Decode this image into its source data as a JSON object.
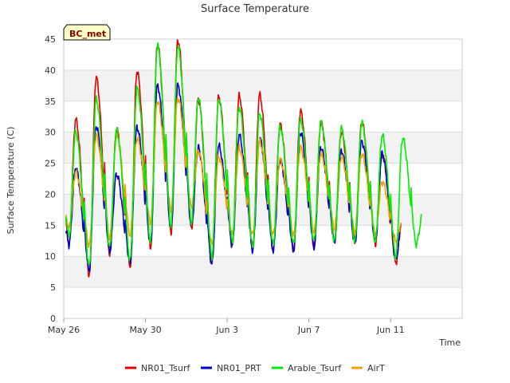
{
  "chart_data": {
    "type": "line",
    "title": "Surface Temperature",
    "xlabel": "Time",
    "ylabel": "Surface Temperature (C)",
    "badge": "BC_met",
    "ylim": [
      0,
      45
    ],
    "yticks": [
      0,
      5,
      10,
      15,
      20,
      25,
      30,
      35,
      40,
      45
    ],
    "xlim": [
      0,
      19.5
    ],
    "xticks": [
      {
        "x": 0,
        "label": "May 26"
      },
      {
        "x": 4,
        "label": "May 30"
      },
      {
        "x": 8,
        "label": "Jun 3"
      },
      {
        "x": 12,
        "label": "Jun 7"
      },
      {
        "x": 16,
        "label": "Jun 11"
      }
    ],
    "grid": "horizontal alternating bands",
    "legend_position": "bottom",
    "series": [
      {
        "name": "NR01_Tsurf",
        "color": "#e00000",
        "days": [
          {
            "min": 11.5,
            "max": 32.0
          },
          {
            "min": 7.0,
            "max": 38.8
          },
          {
            "min": 10.5,
            "max": 30.5
          },
          {
            "min": 8.5,
            "max": 39.8
          },
          {
            "min": 11.5,
            "max": 44.2
          },
          {
            "min": 13.8,
            "max": 44.8
          },
          {
            "min": 14.5,
            "max": 35.3
          },
          {
            "min": 9.0,
            "max": 35.7
          },
          {
            "min": 11.8,
            "max": 35.8
          },
          {
            "min": 11.5,
            "max": 36.0
          },
          {
            "min": 11.0,
            "max": 31.2
          },
          {
            "min": 11.0,
            "max": 33.4
          },
          {
            "min": 11.5,
            "max": 31.5
          },
          {
            "min": 12.5,
            "max": 30.0
          },
          {
            "min": 12.5,
            "max": 31.6
          },
          {
            "min": 12.0,
            "max": 26.5
          },
          {
            "min": 9.0,
            "max": 16.5
          }
        ]
      },
      {
        "name": "NR01_PRT",
        "color": "#0000cc",
        "days": [
          {
            "min": 11.8,
            "max": 24.2
          },
          {
            "min": 7.8,
            "max": 31.0
          },
          {
            "min": 10.8,
            "max": 23.2
          },
          {
            "min": 9.0,
            "max": 30.8
          },
          {
            "min": 12.0,
            "max": 37.5
          },
          {
            "min": 14.5,
            "max": 37.5
          },
          {
            "min": 15.0,
            "max": 27.5
          },
          {
            "min": 8.8,
            "max": 27.8
          },
          {
            "min": 11.8,
            "max": 29.5
          },
          {
            "min": 11.0,
            "max": 29.0
          },
          {
            "min": 11.0,
            "max": 25.5
          },
          {
            "min": 11.0,
            "max": 30.0
          },
          {
            "min": 11.5,
            "max": 27.5
          },
          {
            "min": 12.5,
            "max": 27.0
          },
          {
            "min": 12.2,
            "max": 28.5
          },
          {
            "min": 12.5,
            "max": 26.5
          },
          {
            "min": 9.5,
            "max": 16.5
          }
        ]
      },
      {
        "name": "Arable_Tsurf",
        "color": "#00ee00",
        "days": [
          {
            "min": 13.0,
            "max": 30.0
          },
          {
            "min": 8.5,
            "max": 35.3
          },
          {
            "min": 11.5,
            "max": 30.3
          },
          {
            "min": 9.5,
            "max": 37.0
          },
          {
            "min": 12.5,
            "max": 44.0
          },
          {
            "min": 15.0,
            "max": 43.8
          },
          {
            "min": 15.5,
            "max": 35.5
          },
          {
            "min": 10.0,
            "max": 35.3
          },
          {
            "min": 12.5,
            "max": 34.0
          },
          {
            "min": 11.5,
            "max": 33.0
          },
          {
            "min": 12.0,
            "max": 30.8
          },
          {
            "min": 12.0,
            "max": 32.0
          },
          {
            "min": 12.5,
            "max": 31.6
          },
          {
            "min": 12.5,
            "max": 30.6
          },
          {
            "min": 12.5,
            "max": 31.5
          },
          {
            "min": 12.5,
            "max": 29.5
          },
          {
            "min": 10.0,
            "max": 29.0
          },
          {
            "min": 12.0,
            "max": 17.0
          }
        ]
      },
      {
        "name": "AirT",
        "color": "#f0a000",
        "days": [
          {
            "min": 14.5,
            "max": 23.5
          },
          {
            "min": 11.8,
            "max": 29.5
          },
          {
            "min": 13.0,
            "max": 29.5
          },
          {
            "min": 13.5,
            "max": 29.0
          },
          {
            "min": 15.5,
            "max": 35.0
          },
          {
            "min": 17.5,
            "max": 35.5
          },
          {
            "min": 18.0,
            "max": 27.0
          },
          {
            "min": 12.0,
            "max": 26.0
          },
          {
            "min": 13.5,
            "max": 27.5
          },
          {
            "min": 13.5,
            "max": 28.5
          },
          {
            "min": 13.5,
            "max": 25.5
          },
          {
            "min": 13.5,
            "max": 27.5
          },
          {
            "min": 14.0,
            "max": 26.5
          },
          {
            "min": 14.5,
            "max": 26.0
          },
          {
            "min": 14.0,
            "max": 26.5
          },
          {
            "min": 13.5,
            "max": 22.0
          },
          {
            "min": 12.5,
            "max": 16.0
          }
        ]
      }
    ]
  }
}
